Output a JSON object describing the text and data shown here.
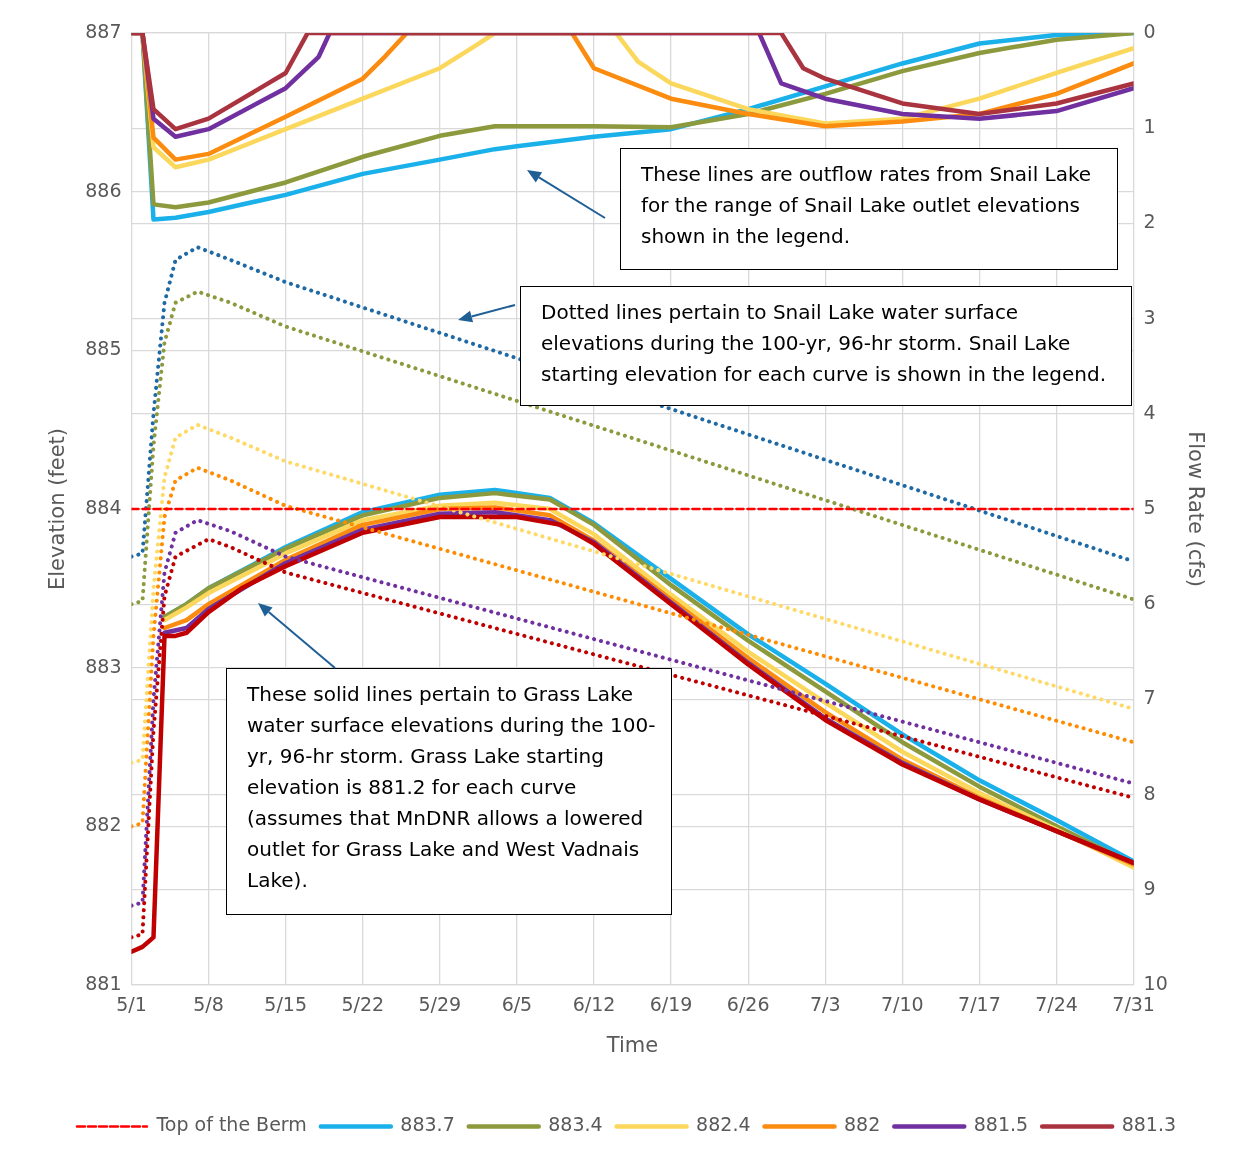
{
  "chart_data": {
    "type": "line",
    "xlabel": "Time",
    "ylabel": "Elevation (feet)",
    "y2label": "Flow Rate (cfs)",
    "xlim": [
      "--05-01",
      "--07-31"
    ],
    "xticks": [
      {
        "value": "--05-01",
        "label": "5/1"
      },
      {
        "value": "--05-08",
        "label": "5/8"
      },
      {
        "value": "--05-15",
        "label": "5/15"
      },
      {
        "value": "--05-22",
        "label": "5/22"
      },
      {
        "value": "--05-29",
        "label": "5/29"
      },
      {
        "value": "--06-05",
        "label": "6/5"
      },
      {
        "value": "--06-12",
        "label": "6/12"
      },
      {
        "value": "--06-19",
        "label": "6/19"
      },
      {
        "value": "--06-26",
        "label": "6/26"
      },
      {
        "value": "--07-03",
        "label": "7/3"
      },
      {
        "value": "--07-10",
        "label": "7/10"
      },
      {
        "value": "--07-17",
        "label": "7/17"
      },
      {
        "value": "--07-24",
        "label": "7/24"
      },
      {
        "value": "--07-31",
        "label": "7/31"
      }
    ],
    "ylim": [
      881,
      887
    ],
    "yticks": [
      881,
      882,
      883,
      884,
      885,
      886,
      887
    ],
    "y2lim": [
      10,
      0
    ],
    "y2ticks": [
      0,
      1,
      2,
      3,
      4,
      5,
      6,
      7,
      8,
      9,
      10
    ],
    "grid": true,
    "legend": "bottom",
    "marker": "none",
    "line_style": "solid",
    "annotations": [
      "These lines are outflow rates from Snail Lake for the range of Snail Lake outlet elevations shown in the legend.",
      "Dotted lines pertain to Snail Lake water surface elevations during the 100-yr, 96-hr storm.  Snail Lake starting elevation for each curve is shown in the legend.",
      "These solid lines pertain to Grass Lake water surface elevations during the 100-yr, 96-hr storm.  Grass Lake starting elevation is 881.2 for each curve (assumes that MnDNR allows a lowered outlet for Grass Lake and West Vadnais Lake)."
    ],
    "series": [
      {
        "name": "Top of the Berm",
        "color": "#ff0000",
        "line_style": "dashed",
        "x": [
          "--05-01",
          "--07-31"
        ],
        "values": [
          884,
          884
        ]
      },
      {
        "name": "883.7",
        "color": "#1ab0ea",
        "axis": "y2",
        "x": [
          "--05-01",
          "--05-02",
          "--05-03",
          "--05-05",
          "--05-08",
          "--05-15",
          "--05-22",
          "--05-29",
          "--06-03",
          "--06-05",
          "--06-12",
          "--06-19",
          "--06-26",
          "--07-03",
          "--07-10",
          "--07-17",
          "--07-24",
          "--07-31"
        ],
        "values": [
          0,
          0,
          1.96,
          1.94,
          1.88,
          1.7,
          1.48,
          1.33,
          1.22,
          1.19,
          1.09,
          1.01,
          0.8,
          0.56,
          0.32,
          0.11,
          0.02,
          0
        ]
      },
      {
        "name": "883.4",
        "color": "#8c993d",
        "axis": "y2",
        "x": [
          "--05-01",
          "--05-02",
          "--05-03",
          "--05-05",
          "--05-08",
          "--05-15",
          "--05-22",
          "--05-29",
          "--06-03",
          "--06-12",
          "--06-19",
          "--06-26",
          "--07-03",
          "--07-10",
          "--07-17",
          "--07-24",
          "--07-31"
        ],
        "values": [
          0,
          0,
          1.8,
          1.83,
          1.78,
          1.57,
          1.3,
          1.08,
          0.98,
          0.98,
          0.99,
          0.85,
          0.64,
          0.4,
          0.21,
          0.07,
          0
        ]
      },
      {
        "name": "882.4",
        "color": "#fbd75b",
        "axis": "y2",
        "x": [
          "--05-01",
          "--05-02",
          "--05-03",
          "--05-05",
          "--05-08",
          "--05-15",
          "--05-22",
          "--05-29",
          "--06-01",
          "--06-03",
          "--06-14",
          "--06-16",
          "--06-19",
          "--06-26",
          "--07-03",
          "--07-10",
          "--07-17",
          "--07-24",
          "--07-31"
        ],
        "values": [
          0,
          0,
          1.2,
          1.41,
          1.33,
          1.01,
          0.69,
          0.37,
          0.15,
          0,
          0,
          0.3,
          0.53,
          0.8,
          0.95,
          0.9,
          0.69,
          0.42,
          0.16
        ]
      },
      {
        "name": "882",
        "color": "#fb8c0f",
        "axis": "y2",
        "x": [
          "--05-01",
          "--05-02",
          "--05-03",
          "--05-05",
          "--05-08",
          "--05-15",
          "--05-22",
          "--05-24",
          "--05-26",
          "--06-10",
          "--06-12",
          "--06-19",
          "--06-26",
          "--07-03",
          "--07-10",
          "--07-17",
          "--07-24",
          "--07-31"
        ],
        "values": [
          0,
          0,
          1.1,
          1.33,
          1.27,
          0.88,
          0.48,
          0.25,
          0,
          0,
          0.37,
          0.69,
          0.85,
          0.98,
          0.93,
          0.85,
          0.64,
          0.32
        ]
      },
      {
        "name": "881.5",
        "color": "#7030a0",
        "axis": "y2",
        "x": [
          "--05-01",
          "--05-02",
          "--05-03",
          "--05-05",
          "--05-08",
          "--05-15",
          "--05-18",
          "--05-19",
          "--06-27",
          "--06-29",
          "--07-03",
          "--07-10",
          "--07-17",
          "--07-24",
          "--07-31"
        ],
        "values": [
          0,
          0,
          0.9,
          1.09,
          1.01,
          0.58,
          0.25,
          0,
          0,
          0.53,
          0.69,
          0.85,
          0.9,
          0.82,
          0.58
        ]
      },
      {
        "name": "881.3",
        "color": "#aa3340",
        "axis": "y2",
        "x": [
          "--05-01",
          "--05-02",
          "--05-03",
          "--05-05",
          "--05-08",
          "--05-15",
          "--05-17",
          "--06-29",
          "--07-01",
          "--07-03",
          "--07-10",
          "--07-17",
          "--07-24",
          "--07-31"
        ],
        "values": [
          0,
          0,
          0.8,
          1.01,
          0.9,
          0.42,
          0,
          0,
          0.37,
          0.48,
          0.74,
          0.85,
          0.74,
          0.53
        ]
      },
      {
        "color": "#1ab0ea",
        "x": [
          "--05-04",
          "--05-06",
          "--05-08",
          "--05-15",
          "--05-22",
          "--05-29",
          "--06-03",
          "--06-08",
          "--06-12",
          "--06-19",
          "--06-26",
          "--07-03",
          "--07-10",
          "--07-17",
          "--07-24",
          "--07-31"
        ],
        "values": [
          883.32,
          883.4,
          883.5,
          883.76,
          883.98,
          884.09,
          884.12,
          884.07,
          883.91,
          883.56,
          883.21,
          882.9,
          882.58,
          882.29,
          882.04,
          881.78
        ]
      },
      {
        "color": "#8c993d",
        "x": [
          "--05-04",
          "--05-06",
          "--05-08",
          "--05-15",
          "--05-22",
          "--05-29",
          "--06-03",
          "--06-08",
          "--06-12",
          "--06-19",
          "--06-26",
          "--07-03",
          "--07-10",
          "--07-17",
          "--07-24",
          "--07-31"
        ],
        "values": [
          883.32,
          883.4,
          883.5,
          883.75,
          883.96,
          884.07,
          884.1,
          884.06,
          883.9,
          883.52,
          883.17,
          882.85,
          882.53,
          882.25,
          882.0,
          881.76
        ]
      },
      {
        "color": "#fbd75b",
        "x": [
          "--05-04",
          "--05-06",
          "--05-08",
          "--05-15",
          "--05-22",
          "--05-29",
          "--06-03",
          "--06-08",
          "--06-12",
          "--06-19",
          "--06-26",
          "--07-03",
          "--07-10",
          "--07-17",
          "--07-24",
          "--07-31"
        ],
        "values": [
          883.3,
          883.38,
          883.47,
          883.72,
          883.93,
          884.02,
          884.04,
          884.0,
          883.84,
          883.46,
          883.1,
          882.78,
          882.47,
          882.21,
          881.98,
          881.74
        ]
      },
      {
        "color": "#fb8c0f",
        "x": [
          "--05-04",
          "--05-06",
          "--05-08",
          "--05-15",
          "--05-22",
          "--05-29",
          "--06-03",
          "--06-08",
          "--06-12",
          "--06-19",
          "--06-26",
          "--07-03",
          "--07-10",
          "--07-17",
          "--07-24",
          "--07-31"
        ],
        "values": [
          883.25,
          883.3,
          883.4,
          883.68,
          883.9,
          884.0,
          884.01,
          883.96,
          883.8,
          883.43,
          883.06,
          882.72,
          882.42,
          882.18,
          881.97,
          881.76
        ]
      },
      {
        "color": "#7030a0",
        "x": [
          "--05-04",
          "--05-06",
          "--05-08",
          "--05-15",
          "--05-22",
          "--05-29",
          "--06-03",
          "--06-08",
          "--06-12",
          "--06-19",
          "--06-26",
          "--07-03",
          "--07-10",
          "--07-17",
          "--07-24",
          "--07-31"
        ],
        "values": [
          883.22,
          883.25,
          883.37,
          883.66,
          883.87,
          883.97,
          883.98,
          883.93,
          883.79,
          883.41,
          883.03,
          882.68,
          882.4,
          882.17,
          881.97,
          881.77
        ]
      },
      {
        "color": "#c00000",
        "x": [
          "--05-01",
          "--05-02",
          "--05-03",
          "--05-04",
          "--05-05",
          "--05-06",
          "--05-08",
          "--05-11",
          "--05-15",
          "--05-22",
          "--05-29",
          "--06-05",
          "--06-09",
          "--06-12",
          "--06-19",
          "--06-26",
          "--07-03",
          "--07-10",
          "--07-17",
          "--07-24",
          "--07-31"
        ],
        "values": [
          881.21,
          881.24,
          881.3,
          883.2,
          883.2,
          883.22,
          883.35,
          883.5,
          883.64,
          883.85,
          883.95,
          883.95,
          883.9,
          883.78,
          883.4,
          883.02,
          882.67,
          882.39,
          882.17,
          881.97,
          881.77
        ]
      },
      {
        "color": "#1f6aa5",
        "line_style": "dotted",
        "x": [
          "--05-01",
          "--05-02",
          "--05-03",
          "--05-04",
          "--05-05",
          "--05-07",
          "--05-10",
          "--05-15",
          "--07-31"
        ],
        "values": [
          883.7,
          883.72,
          884.6,
          885.3,
          885.57,
          885.65,
          885.57,
          885.43,
          883.67
        ]
      },
      {
        "color": "#8c993d",
        "line_style": "dotted",
        "x": [
          "--05-01",
          "--05-02",
          "--05-03",
          "--05-04",
          "--05-05",
          "--05-07",
          "--05-10",
          "--05-15",
          "--07-31"
        ],
        "values": [
          883.4,
          883.42,
          884.4,
          885.05,
          885.3,
          885.37,
          885.3,
          885.15,
          883.43
        ]
      },
      {
        "color": "#ffd966",
        "line_style": "dotted",
        "x": [
          "--05-01",
          "--05-02",
          "--05-03",
          "--05-04",
          "--05-05",
          "--05-07",
          "--05-10",
          "--05-15",
          "--07-31"
        ],
        "values": [
          882.4,
          882.42,
          883.5,
          884.2,
          884.45,
          884.53,
          884.45,
          884.3,
          882.74
        ]
      },
      {
        "color": "#ff8c00",
        "line_style": "dotted",
        "x": [
          "--05-01",
          "--05-02",
          "--05-03",
          "--05-04",
          "--05-05",
          "--05-07",
          "--05-10",
          "--05-15",
          "--07-31"
        ],
        "values": [
          882.0,
          882.02,
          883.2,
          883.95,
          884.18,
          884.26,
          884.18,
          884.02,
          882.53
        ]
      },
      {
        "color": "#7030a0",
        "line_style": "dotted",
        "x": [
          "--05-01",
          "--05-02",
          "--05-03",
          "--05-04",
          "--05-05",
          "--05-07",
          "--05-10",
          "--05-15",
          "--07-31"
        ],
        "values": [
          881.5,
          881.52,
          882.8,
          883.6,
          883.85,
          883.93,
          883.86,
          883.7,
          882.27
        ]
      },
      {
        "color": "#c00000",
        "line_style": "dotted",
        "x": [
          "--05-01",
          "--05-02",
          "--05-03",
          "--05-04",
          "--05-05",
          "--05-08",
          "--05-10",
          "--05-15",
          "--07-31"
        ],
        "values": [
          881.3,
          881.32,
          882.6,
          883.45,
          883.7,
          883.81,
          883.76,
          883.6,
          882.18
        ]
      }
    ]
  }
}
